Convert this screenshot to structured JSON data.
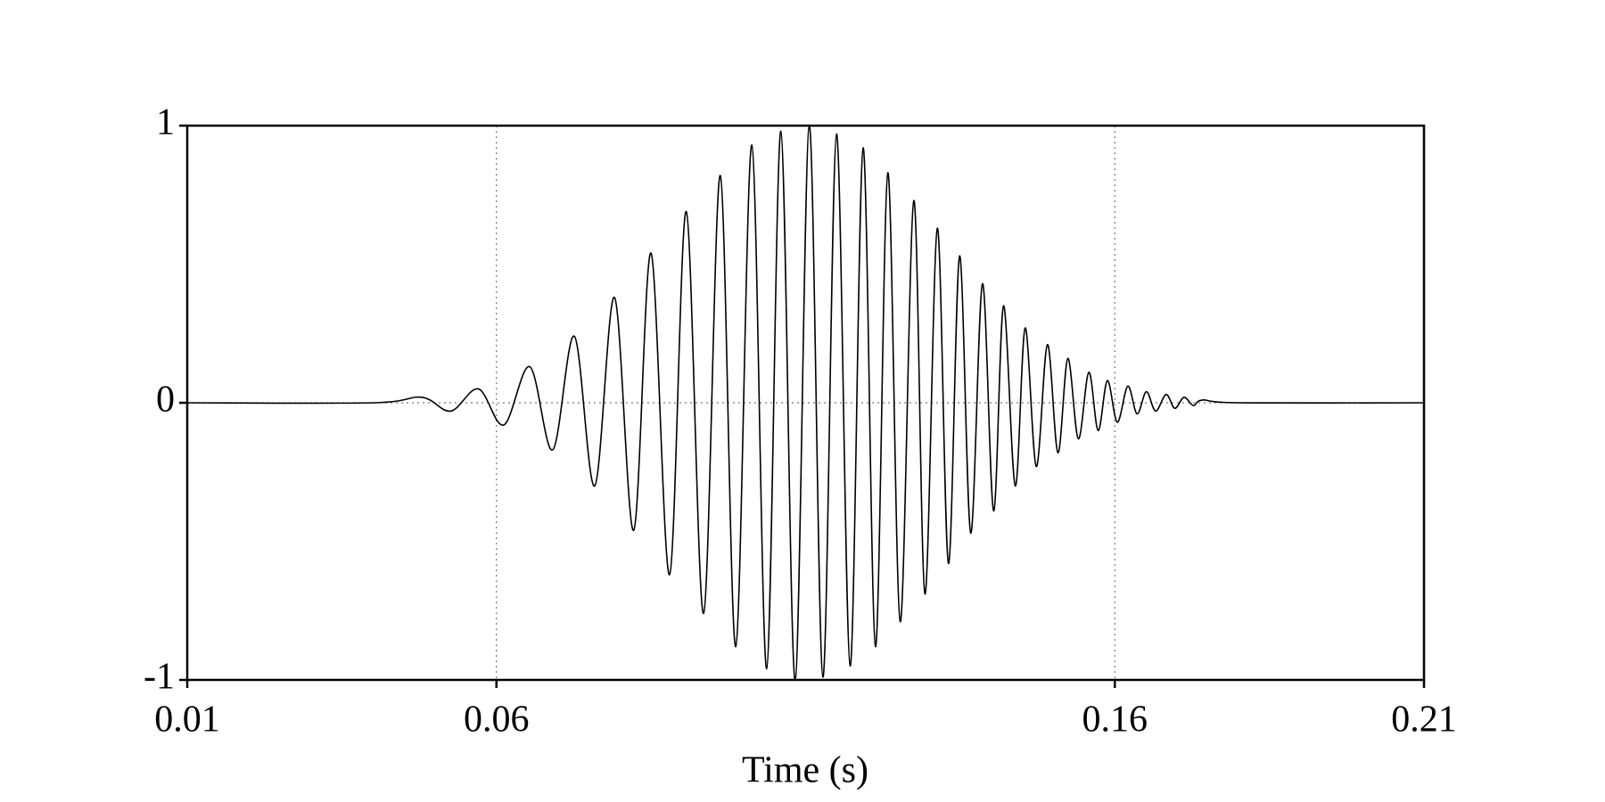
{
  "chart_data": {
    "type": "line",
    "x_label": "Time (s)",
    "x": [
      0.01,
      0.04,
      0.0479,
      0.0526,
      0.0571,
      0.0612,
      0.0654,
      0.0691,
      0.0726,
      0.0759,
      0.0791,
      0.0822,
      0.085,
      0.088,
      0.0907,
      0.0935,
      0.0962,
      0.0987,
      0.1013,
      0.1037,
      0.106,
      0.1083,
      0.1106,
      0.1128,
      0.115,
      0.1172,
      0.1193,
      0.1213,
      0.1233,
      0.1253,
      0.1275,
      0.1293,
      0.1313,
      0.1331,
      0.1349,
      0.1367,
      0.1386,
      0.1404,
      0.142,
      0.1439,
      0.1455,
      0.1473,
      0.1491,
      0.1508,
      0.1524,
      0.1541,
      0.1558,
      0.1573,
      0.1588,
      0.1604,
      0.1621,
      0.1636,
      0.1651,
      0.1666,
      0.1683,
      0.1697,
      0.1712,
      0.1727,
      0.1742,
      0.18,
      0.21
    ],
    "values": [
      0,
      0,
      0.02,
      -0.03,
      0.05,
      -0.08,
      0.13,
      -0.17,
      0.24,
      -0.3,
      0.38,
      -0.46,
      0.54,
      -0.62,
      0.69,
      -0.76,
      0.82,
      -0.88,
      0.93,
      -0.96,
      0.98,
      -1,
      1,
      -0.99,
      0.97,
      -0.95,
      0.92,
      -0.88,
      0.83,
      -0.79,
      0.73,
      -0.69,
      0.63,
      -0.58,
      0.53,
      -0.47,
      0.43,
      -0.39,
      0.35,
      -0.3,
      0.27,
      -0.23,
      0.21,
      -0.18,
      0.16,
      -0.13,
      0.11,
      -0.1,
      0.08,
      -0.07,
      0.06,
      -0.04,
      0.04,
      -0.03,
      0.03,
      -0.02,
      0.02,
      -0.01,
      0.01,
      0,
      0
    ],
    "color": "#000000",
    "xlim": [
      0.01,
      0.21
    ],
    "xticks": [
      0.01,
      0.06,
      0.16,
      0.21
    ],
    "ylim": [
      -1,
      1
    ],
    "yticks": [
      -1,
      0,
      1
    ],
    "grid": true
  }
}
